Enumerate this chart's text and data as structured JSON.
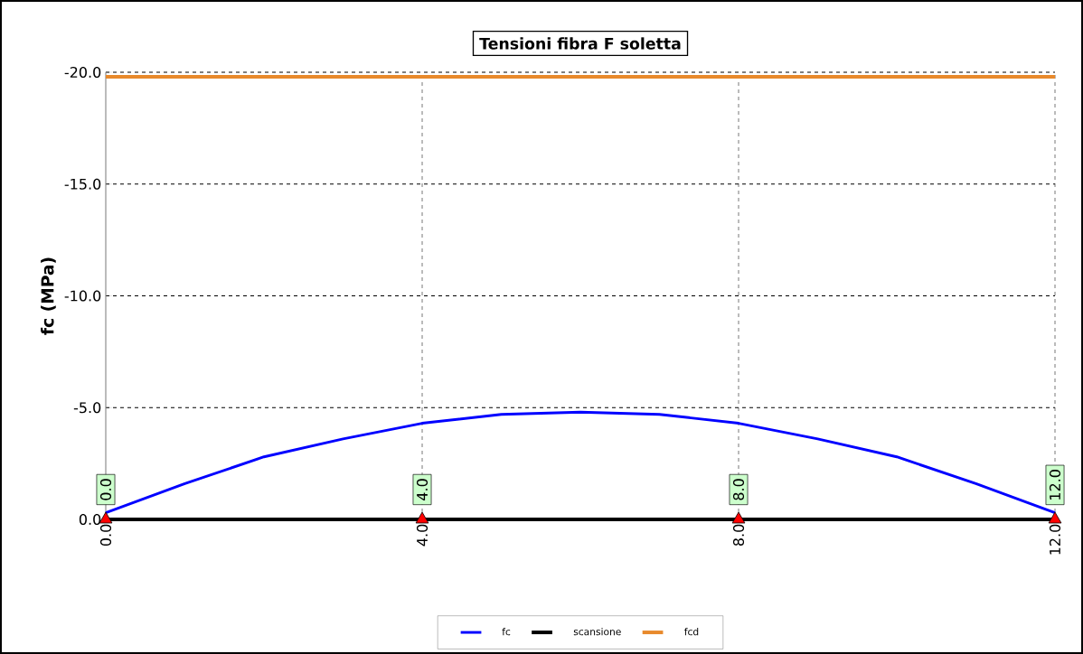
{
  "chart_data": {
    "type": "line",
    "title": "Tensioni fibra F soletta",
    "ylabel": "fc (MPa)",
    "xlim": [
      0,
      12
    ],
    "xticks": [
      {
        "value": 0,
        "label": "0.0"
      },
      {
        "value": 4,
        "label": "4.0"
      },
      {
        "value": 8,
        "label": "8.0"
      },
      {
        "value": 12,
        "label": "12.0"
      }
    ],
    "ylim": [
      0,
      -20
    ],
    "yticks": [
      {
        "value": 0,
        "label": "0.0"
      },
      {
        "value": -5,
        "label": "-5.0"
      },
      {
        "value": -10,
        "label": "-10.0"
      },
      {
        "value": -15,
        "label": "-15.0"
      },
      {
        "value": -20,
        "label": "-20.0"
      }
    ],
    "annotations": [
      {
        "text": "0.0",
        "x": 0,
        "y": 0
      },
      {
        "text": "4.0",
        "x": 4,
        "y": 0
      },
      {
        "text": "8.0",
        "x": 8,
        "y": 0
      },
      {
        "text": "12.0",
        "x": 12,
        "y": 0
      }
    ],
    "grid": true,
    "legend": "bottom",
    "marker": "none",
    "line_style": "solid",
    "series": [
      {
        "name": "fc",
        "color": "#0000ff",
        "x": [
          0,
          1,
          2,
          3,
          4,
          5,
          6,
          7,
          8,
          9,
          10,
          11,
          12
        ],
        "values": [
          -0.3,
          -1.6,
          -2.8,
          -3.6,
          -4.3,
          -4.7,
          -4.8,
          -4.7,
          -4.3,
          -3.6,
          -2.8,
          -1.6,
          -0.3
        ]
      },
      {
        "name": "scansione",
        "color": "#000000",
        "marker": "triangle",
        "x": [
          0,
          4,
          8,
          12
        ],
        "values": [
          0,
          0,
          0,
          0
        ]
      },
      {
        "name": "fcd",
        "color": "#e8892b",
        "x": [
          0,
          12
        ],
        "values": [
          -19.8,
          -19.8
        ]
      }
    ]
  }
}
